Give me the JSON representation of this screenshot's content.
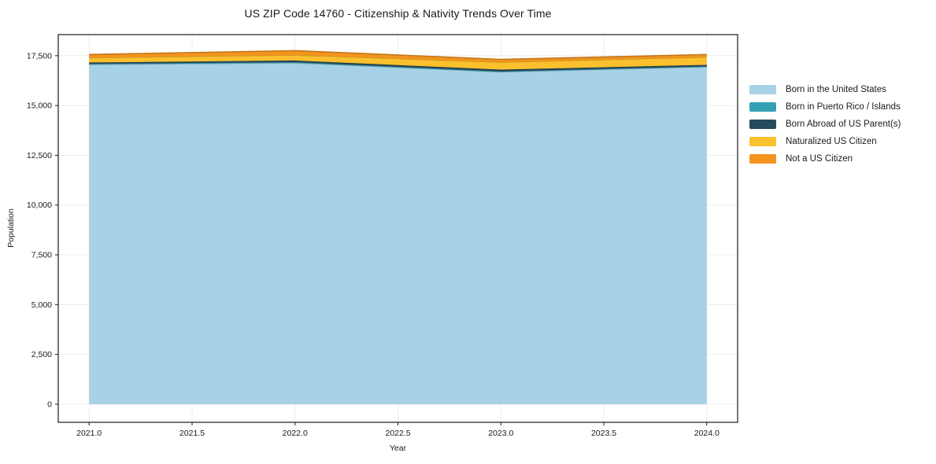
{
  "chart_data": {
    "type": "area",
    "stacked": true,
    "title": "US ZIP Code 14760 - Citizenship & Nativity Trends Over Time",
    "xlabel": "Year",
    "ylabel": "Population",
    "x": [
      2021,
      2022,
      2023,
      2024
    ],
    "series": [
      {
        "name": "Born in the United States",
        "color": "#A6D1E6",
        "values": [
          17060,
          17140,
          16685,
          16940
        ]
      },
      {
        "name": "Born in Puerto Rico / Islands",
        "color": "#35A1B5",
        "values": [
          35,
          40,
          30,
          30
        ]
      },
      {
        "name": "Born Abroad of US Parent(s)",
        "color": "#254A5C",
        "values": [
          65,
          80,
          85,
          70
        ]
      },
      {
        "name": "Naturalized US Citizen",
        "color": "#FBC02E",
        "values": [
          240,
          275,
          375,
          390
        ]
      },
      {
        "name": "Not a US Citizen",
        "color": "#F3941E",
        "values": [
          160,
          220,
          140,
          130
        ]
      }
    ],
    "xlim": [
      2020.85,
      2024.15
    ],
    "ylim": [
      -910,
      18560
    ],
    "xticks": {
      "values": [
        2021,
        2021.5,
        2022,
        2022.5,
        2023,
        2023.5,
        2024
      ],
      "labels": [
        "2021.0",
        "2021.5",
        "2022.0",
        "2022.5",
        "2023.0",
        "2023.5",
        "2024.0"
      ]
    },
    "yticks": {
      "values": [
        0,
        2500,
        5000,
        7500,
        10000,
        12500,
        15000,
        17500
      ],
      "labels": [
        "0",
        "2,500",
        "5,000",
        "7,500",
        "10,000",
        "12,500",
        "15,000",
        "17,500"
      ]
    },
    "grid": true,
    "legend_position": "right-outside"
  },
  "colors": {
    "background": "#ffffff",
    "spine": "#1a1a1a",
    "grid": "#ececec",
    "tick": "#1a1a1a",
    "text": "#1a1a1a"
  }
}
